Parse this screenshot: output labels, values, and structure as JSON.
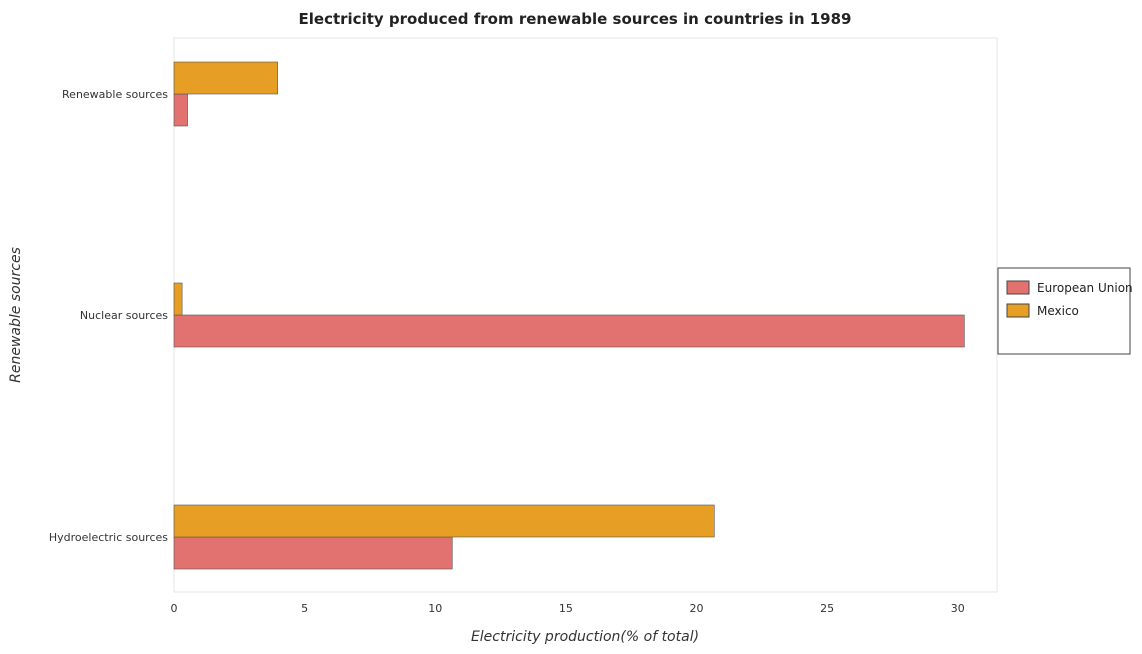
{
  "chart_data": {
    "type": "bar",
    "orientation": "horizontal",
    "title": "Electricity produced from renewable sources in countries in 1989",
    "xlabel": "Electricity production(% of total)",
    "ylabel": "Renewable sources",
    "categories": [
      "Hydroelectric sources",
      "Nuclear sources",
      "Renewable sources"
    ],
    "series": [
      {
        "name": "European Union",
        "color": "#e2726f",
        "values": [
          10.65,
          30.25,
          0.52
        ]
      },
      {
        "name": "Mexico",
        "color": "#e79e24",
        "values": [
          20.68,
          0.31,
          3.97
        ]
      }
    ],
    "xlim": [
      0,
      31.5
    ],
    "xticks": [
      0,
      5,
      10,
      15,
      20,
      25,
      30
    ],
    "xtick_labels": [
      "0",
      "5",
      "10",
      "15",
      "20",
      "25",
      "30"
    ],
    "grid": false,
    "legend_position": "right"
  }
}
